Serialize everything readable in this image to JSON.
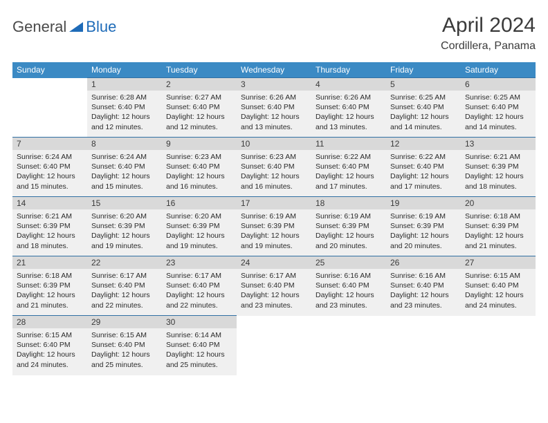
{
  "logo": {
    "text1": "General",
    "text2": "Blue"
  },
  "title": "April 2024",
  "location": "Cordillera, Panama",
  "colors": {
    "header_bg": "#3b8ac4",
    "header_text": "#ffffff",
    "cell_bg": "#f0f0f0",
    "daynum_bg": "#d9d9d9",
    "border": "#2f6fa3",
    "logo_accent": "#1e6bb8"
  },
  "day_headers": [
    "Sunday",
    "Monday",
    "Tuesday",
    "Wednesday",
    "Thursday",
    "Friday",
    "Saturday"
  ],
  "weeks": [
    [
      null,
      {
        "n": "1",
        "sr": "Sunrise: 6:28 AM",
        "ss": "Sunset: 6:40 PM",
        "dl1": "Daylight: 12 hours",
        "dl2": "and 12 minutes."
      },
      {
        "n": "2",
        "sr": "Sunrise: 6:27 AM",
        "ss": "Sunset: 6:40 PM",
        "dl1": "Daylight: 12 hours",
        "dl2": "and 12 minutes."
      },
      {
        "n": "3",
        "sr": "Sunrise: 6:26 AM",
        "ss": "Sunset: 6:40 PM",
        "dl1": "Daylight: 12 hours",
        "dl2": "and 13 minutes."
      },
      {
        "n": "4",
        "sr": "Sunrise: 6:26 AM",
        "ss": "Sunset: 6:40 PM",
        "dl1": "Daylight: 12 hours",
        "dl2": "and 13 minutes."
      },
      {
        "n": "5",
        "sr": "Sunrise: 6:25 AM",
        "ss": "Sunset: 6:40 PM",
        "dl1": "Daylight: 12 hours",
        "dl2": "and 14 minutes."
      },
      {
        "n": "6",
        "sr": "Sunrise: 6:25 AM",
        "ss": "Sunset: 6:40 PM",
        "dl1": "Daylight: 12 hours",
        "dl2": "and 14 minutes."
      }
    ],
    [
      {
        "n": "7",
        "sr": "Sunrise: 6:24 AM",
        "ss": "Sunset: 6:40 PM",
        "dl1": "Daylight: 12 hours",
        "dl2": "and 15 minutes."
      },
      {
        "n": "8",
        "sr": "Sunrise: 6:24 AM",
        "ss": "Sunset: 6:40 PM",
        "dl1": "Daylight: 12 hours",
        "dl2": "and 15 minutes."
      },
      {
        "n": "9",
        "sr": "Sunrise: 6:23 AM",
        "ss": "Sunset: 6:40 PM",
        "dl1": "Daylight: 12 hours",
        "dl2": "and 16 minutes."
      },
      {
        "n": "10",
        "sr": "Sunrise: 6:23 AM",
        "ss": "Sunset: 6:40 PM",
        "dl1": "Daylight: 12 hours",
        "dl2": "and 16 minutes."
      },
      {
        "n": "11",
        "sr": "Sunrise: 6:22 AM",
        "ss": "Sunset: 6:40 PM",
        "dl1": "Daylight: 12 hours",
        "dl2": "and 17 minutes."
      },
      {
        "n": "12",
        "sr": "Sunrise: 6:22 AM",
        "ss": "Sunset: 6:40 PM",
        "dl1": "Daylight: 12 hours",
        "dl2": "and 17 minutes."
      },
      {
        "n": "13",
        "sr": "Sunrise: 6:21 AM",
        "ss": "Sunset: 6:39 PM",
        "dl1": "Daylight: 12 hours",
        "dl2": "and 18 minutes."
      }
    ],
    [
      {
        "n": "14",
        "sr": "Sunrise: 6:21 AM",
        "ss": "Sunset: 6:39 PM",
        "dl1": "Daylight: 12 hours",
        "dl2": "and 18 minutes."
      },
      {
        "n": "15",
        "sr": "Sunrise: 6:20 AM",
        "ss": "Sunset: 6:39 PM",
        "dl1": "Daylight: 12 hours",
        "dl2": "and 19 minutes."
      },
      {
        "n": "16",
        "sr": "Sunrise: 6:20 AM",
        "ss": "Sunset: 6:39 PM",
        "dl1": "Daylight: 12 hours",
        "dl2": "and 19 minutes."
      },
      {
        "n": "17",
        "sr": "Sunrise: 6:19 AM",
        "ss": "Sunset: 6:39 PM",
        "dl1": "Daylight: 12 hours",
        "dl2": "and 19 minutes."
      },
      {
        "n": "18",
        "sr": "Sunrise: 6:19 AM",
        "ss": "Sunset: 6:39 PM",
        "dl1": "Daylight: 12 hours",
        "dl2": "and 20 minutes."
      },
      {
        "n": "19",
        "sr": "Sunrise: 6:19 AM",
        "ss": "Sunset: 6:39 PM",
        "dl1": "Daylight: 12 hours",
        "dl2": "and 20 minutes."
      },
      {
        "n": "20",
        "sr": "Sunrise: 6:18 AM",
        "ss": "Sunset: 6:39 PM",
        "dl1": "Daylight: 12 hours",
        "dl2": "and 21 minutes."
      }
    ],
    [
      {
        "n": "21",
        "sr": "Sunrise: 6:18 AM",
        "ss": "Sunset: 6:39 PM",
        "dl1": "Daylight: 12 hours",
        "dl2": "and 21 minutes."
      },
      {
        "n": "22",
        "sr": "Sunrise: 6:17 AM",
        "ss": "Sunset: 6:40 PM",
        "dl1": "Daylight: 12 hours",
        "dl2": "and 22 minutes."
      },
      {
        "n": "23",
        "sr": "Sunrise: 6:17 AM",
        "ss": "Sunset: 6:40 PM",
        "dl1": "Daylight: 12 hours",
        "dl2": "and 22 minutes."
      },
      {
        "n": "24",
        "sr": "Sunrise: 6:17 AM",
        "ss": "Sunset: 6:40 PM",
        "dl1": "Daylight: 12 hours",
        "dl2": "and 23 minutes."
      },
      {
        "n": "25",
        "sr": "Sunrise: 6:16 AM",
        "ss": "Sunset: 6:40 PM",
        "dl1": "Daylight: 12 hours",
        "dl2": "and 23 minutes."
      },
      {
        "n": "26",
        "sr": "Sunrise: 6:16 AM",
        "ss": "Sunset: 6:40 PM",
        "dl1": "Daylight: 12 hours",
        "dl2": "and 23 minutes."
      },
      {
        "n": "27",
        "sr": "Sunrise: 6:15 AM",
        "ss": "Sunset: 6:40 PM",
        "dl1": "Daylight: 12 hours",
        "dl2": "and 24 minutes."
      }
    ],
    [
      {
        "n": "28",
        "sr": "Sunrise: 6:15 AM",
        "ss": "Sunset: 6:40 PM",
        "dl1": "Daylight: 12 hours",
        "dl2": "and 24 minutes."
      },
      {
        "n": "29",
        "sr": "Sunrise: 6:15 AM",
        "ss": "Sunset: 6:40 PM",
        "dl1": "Daylight: 12 hours",
        "dl2": "and 25 minutes."
      },
      {
        "n": "30",
        "sr": "Sunrise: 6:14 AM",
        "ss": "Sunset: 6:40 PM",
        "dl1": "Daylight: 12 hours",
        "dl2": "and 25 minutes."
      },
      null,
      null,
      null,
      null
    ]
  ]
}
